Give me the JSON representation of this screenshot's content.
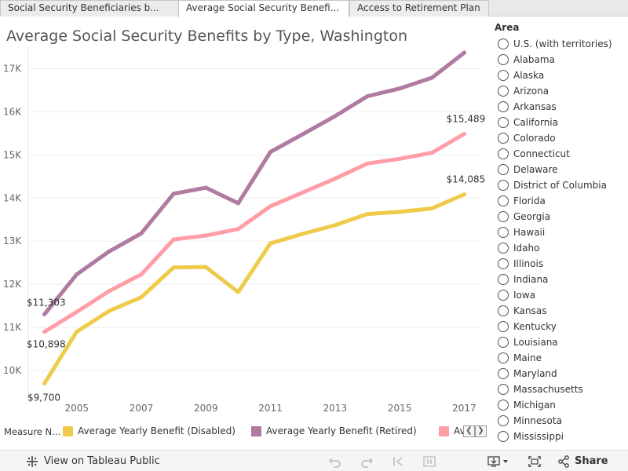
{
  "tabs": [
    {
      "label": "Social Security Beneficiaries b..."
    },
    {
      "label": "Average Social Security Benefi..."
    },
    {
      "label": "Access to Retirement Plan"
    }
  ],
  "chart_data": {
    "type": "line",
    "title": "Average Social Security Benefits by Type, Washington",
    "xlabel": "",
    "ylabel": "",
    "x": [
      2004,
      2005,
      2006,
      2007,
      2008,
      2009,
      2010,
      2011,
      2012,
      2013,
      2014,
      2015,
      2016,
      2017
    ],
    "x_ticks": [
      2005,
      2007,
      2009,
      2011,
      2013,
      2015,
      2017
    ],
    "y_ticks": [
      10000,
      11000,
      12000,
      13000,
      14000,
      15000,
      16000,
      17000
    ],
    "y_tick_labels": [
      "10K",
      "11K",
      "12K",
      "13K",
      "14K",
      "15K",
      "16K",
      "17K"
    ],
    "xlim": [
      2003.5,
      2017.5
    ],
    "ylim": [
      9400,
      17500
    ],
    "grid": "horizontal",
    "legend_position": "bottom",
    "series": [
      {
        "name": "Average Yearly Benefit (Disabled)",
        "color": "#eecb4a",
        "values": [
          9700,
          10900,
          11380,
          11700,
          12390,
          12400,
          11820,
          12950,
          13170,
          13370,
          13630,
          13680,
          13760,
          14085
        ],
        "start_label": "$9,700",
        "end_label": "$14,085"
      },
      {
        "name": "Average Yearly Benefit (Retired)",
        "color": "#b07aa1",
        "values": [
          11303,
          12230,
          12760,
          13180,
          14100,
          14240,
          13880,
          15070,
          15480,
          15900,
          16360,
          16540,
          16790,
          17370
        ],
        "start_label": "$11,303",
        "end_label": "$17,370"
      },
      {
        "name": "Av",
        "color": "#ff9da7",
        "values": [
          10898,
          11360,
          11840,
          12230,
          13040,
          13130,
          13280,
          13810,
          14130,
          14450,
          14800,
          14910,
          15050,
          15489
        ],
        "start_label": "$10,898",
        "end_label": "$15,489"
      }
    ]
  },
  "legend": {
    "title": "Measure N..."
  },
  "area_filter": {
    "title": "Area",
    "options": [
      "U.S. (with territories)",
      "Alabama",
      "Alaska",
      "Arizona",
      "Arkansas",
      "California",
      "Colorado",
      "Connecticut",
      "Delaware",
      "District of Columbia",
      "Florida",
      "Georgia",
      "Hawaii",
      "Idaho",
      "Illinois",
      "Indiana",
      "Iowa",
      "Kansas",
      "Kentucky",
      "Louisiana",
      "Maine",
      "Maryland",
      "Massachusetts",
      "Michigan",
      "Minnesota",
      "Mississippi"
    ]
  },
  "toolbar": {
    "view_label": "View on Tableau Public",
    "share_label": "Share",
    "icons": [
      "tableau-logo-icon",
      "undo-icon",
      "redo-icon",
      "revert-icon",
      "pause-icon",
      "download-icon",
      "fullscreen-icon",
      "share-icon"
    ]
  }
}
